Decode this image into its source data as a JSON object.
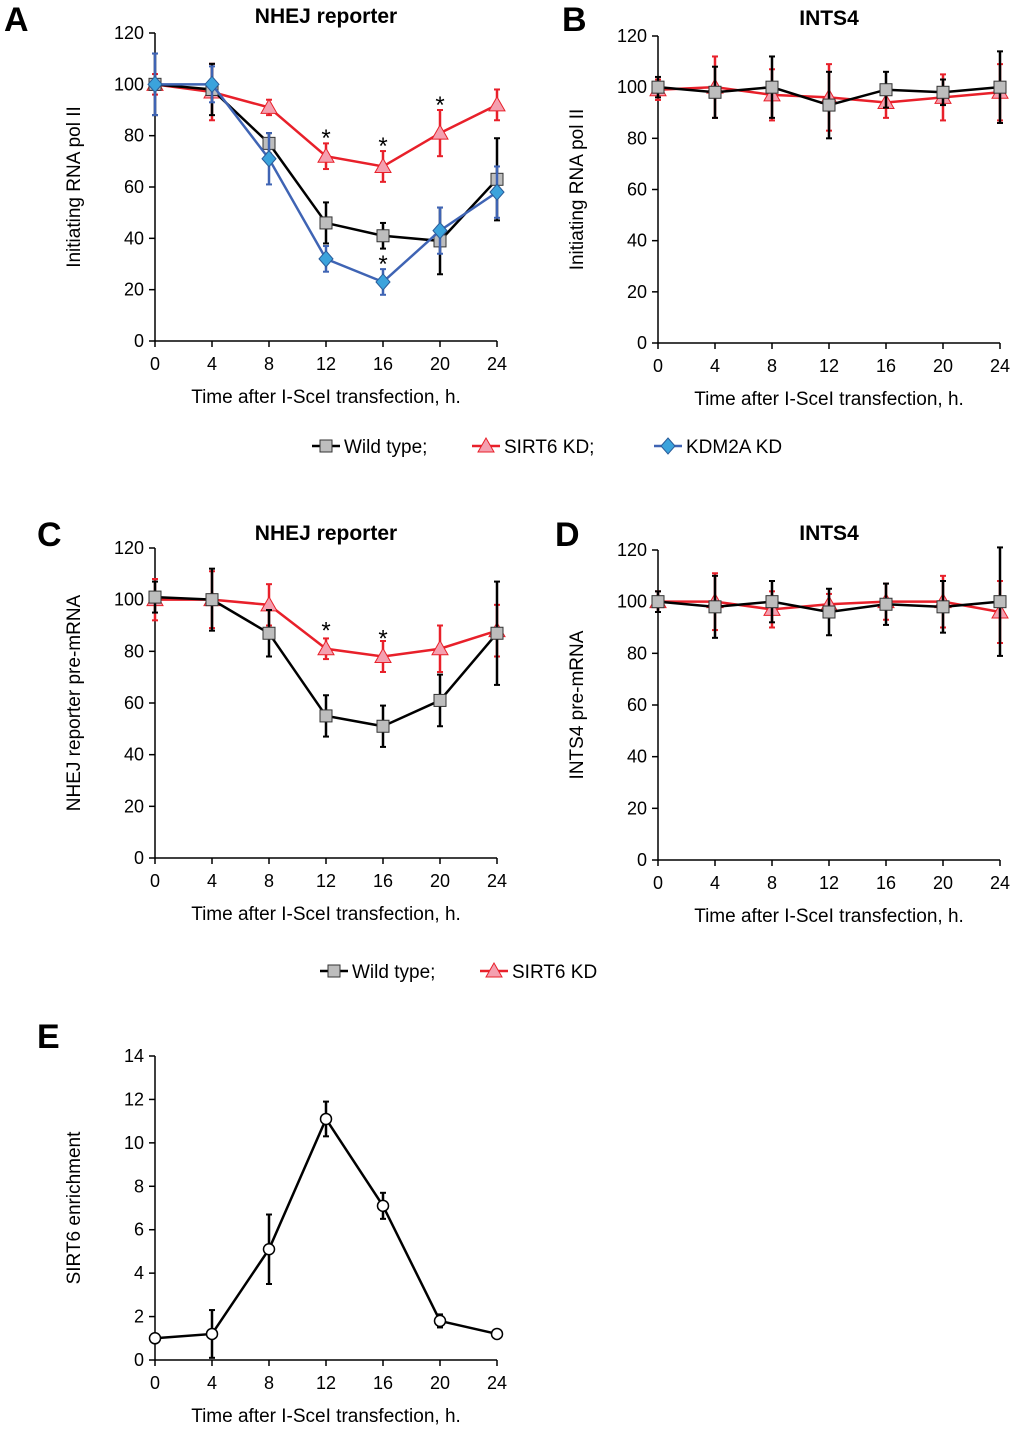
{
  "colors": {
    "wild_type": "#000000",
    "sirt6_kd": "#e8202a",
    "kdm2a_kd": "#3f64b4",
    "wild_type_marker": "#bdbdbd",
    "sirt6_kd_marker": "#f4a0b0",
    "kdm2a_kd_marker": "#3ba3dc",
    "panel_e_marker": "#ffffff"
  },
  "legends": [
    {
      "entries": [
        "Wild type;",
        "SIRT6 KD;",
        "KDM2A KD"
      ]
    },
    {
      "entries": [
        "Wild type;",
        "SIRT6 KD"
      ]
    }
  ],
  "chart_data": [
    {
      "panel": "A",
      "type": "line",
      "title": "NHEJ reporter",
      "xlabel": "Time after I-SceI transfection, h.",
      "ylabel": "Initiating RNA pol II",
      "x": [
        0,
        4,
        8,
        12,
        16,
        20,
        24
      ],
      "xlim": [
        0,
        24
      ],
      "ylim": [
        0,
        120
      ],
      "xticks": [
        "0",
        "4",
        "8",
        "12",
        "16",
        "20",
        "24"
      ],
      "yticks": [
        "0",
        "20",
        "40",
        "60",
        "80",
        "100",
        "120"
      ],
      "series": [
        {
          "name": "SIRT6 KD",
          "values": [
            100,
            97,
            91,
            72,
            68,
            81,
            92
          ],
          "errors": [
            4,
            11,
            3,
            5,
            6,
            9,
            6
          ]
        },
        {
          "name": "Wild type",
          "values": [
            100,
            98,
            77,
            46,
            41,
            39,
            63
          ],
          "errors": [
            12,
            10,
            4,
            8,
            5,
            13,
            16
          ]
        },
        {
          "name": "KDM2A KD",
          "values": [
            100,
            100,
            71,
            32,
            23,
            43,
            58
          ],
          "errors": [
            12,
            7,
            10,
            5,
            5,
            9,
            10
          ]
        }
      ],
      "annotations": [
        {
          "text": "*",
          "x": 12,
          "y": 79
        },
        {
          "text": "*",
          "x": 16,
          "y": 76
        },
        {
          "text": "*",
          "x": 20,
          "y": 92
        },
        {
          "text": "*",
          "x": 16,
          "y": 30
        }
      ]
    },
    {
      "panel": "B",
      "type": "line",
      "title": "INTS4",
      "xlabel": "Time after I-SceI transfection, h.",
      "ylabel": "Initiating RNA pol II",
      "x": [
        0,
        4,
        8,
        12,
        16,
        20,
        24
      ],
      "xlim": [
        0,
        24
      ],
      "ylim": [
        0,
        120
      ],
      "xticks": [
        "0",
        "4",
        "8",
        "12",
        "16",
        "20",
        "24"
      ],
      "yticks": [
        "0",
        "20",
        "40",
        "60",
        "80",
        "100",
        "120"
      ],
      "series": [
        {
          "name": "SIRT6 KD",
          "values": [
            99,
            100,
            97,
            96,
            94,
            96,
            98
          ],
          "errors": [
            4,
            12,
            10,
            13,
            6,
            9,
            11
          ]
        },
        {
          "name": "Wild type",
          "values": [
            100,
            98,
            100,
            93,
            99,
            98,
            100
          ],
          "errors": [
            4,
            10,
            12,
            13,
            7,
            5,
            14
          ]
        }
      ],
      "annotations": []
    },
    {
      "panel": "C",
      "type": "line",
      "title": "NHEJ reporter",
      "xlabel": "Time after I-SceI transfection, h.",
      "ylabel": "NHEJ reporter pre-mRNA",
      "x": [
        0,
        4,
        8,
        12,
        16,
        20,
        24
      ],
      "xlim": [
        0,
        24
      ],
      "ylim": [
        0,
        120
      ],
      "xticks": [
        "0",
        "4",
        "8",
        "12",
        "16",
        "20",
        "24"
      ],
      "yticks": [
        "0",
        "20",
        "40",
        "60",
        "80",
        "100",
        "120"
      ],
      "series": [
        {
          "name": "SIRT6 KD",
          "values": [
            100,
            100,
            98,
            81,
            78,
            81,
            88
          ],
          "errors": [
            8,
            11,
            8,
            4,
            6,
            9,
            10
          ]
        },
        {
          "name": "Wild type",
          "values": [
            101,
            100,
            87,
            55,
            51,
            61,
            87
          ],
          "errors": [
            6,
            12,
            9,
            8,
            8,
            10,
            20
          ]
        }
      ],
      "annotations": [
        {
          "text": "*",
          "x": 12,
          "y": 88
        },
        {
          "text": "*",
          "x": 16,
          "y": 85
        }
      ]
    },
    {
      "panel": "D",
      "type": "line",
      "title": "INTS4",
      "xlabel": "Time after I-SceI transfection, h.",
      "ylabel": "INTS4 pre-mRNA",
      "x": [
        0,
        4,
        8,
        12,
        16,
        20,
        24
      ],
      "xlim": [
        0,
        24
      ],
      "ylim": [
        0,
        120
      ],
      "xticks": [
        "0",
        "4",
        "8",
        "12",
        "16",
        "20",
        "24"
      ],
      "yticks": [
        "0",
        "20",
        "40",
        "60",
        "80",
        "100",
        "120"
      ],
      "series": [
        {
          "name": "SIRT6 KD",
          "values": [
            100,
            100,
            97,
            99,
            100,
            100,
            96
          ],
          "errors": [
            4,
            11,
            7,
            4,
            7,
            10,
            12
          ]
        },
        {
          "name": "Wild type",
          "values": [
            100,
            98,
            100,
            96,
            99,
            98,
            100
          ],
          "errors": [
            4,
            12,
            8,
            9,
            8,
            10,
            21
          ]
        }
      ],
      "annotations": []
    },
    {
      "panel": "E",
      "type": "line",
      "title": "",
      "xlabel": "Time after I-SceI transfection, h.",
      "ylabel": "SIRT6 enrichment",
      "x": [
        0,
        4,
        8,
        12,
        16,
        20,
        24
      ],
      "xlim": [
        0,
        24
      ],
      "ylim": [
        0,
        14
      ],
      "xticks": [
        "0",
        "4",
        "8",
        "12",
        "16",
        "20",
        "24"
      ],
      "yticks": [
        "0",
        "2",
        "4",
        "6",
        "8",
        "10",
        "12",
        "14"
      ],
      "series": [
        {
          "name": "SIRT6 enrichment",
          "values": [
            1.0,
            1.2,
            5.1,
            11.1,
            7.1,
            1.8,
            1.2
          ],
          "errors": [
            0.15,
            1.1,
            1.6,
            0.8,
            0.6,
            0.3,
            0.1
          ]
        }
      ],
      "annotations": []
    }
  ]
}
